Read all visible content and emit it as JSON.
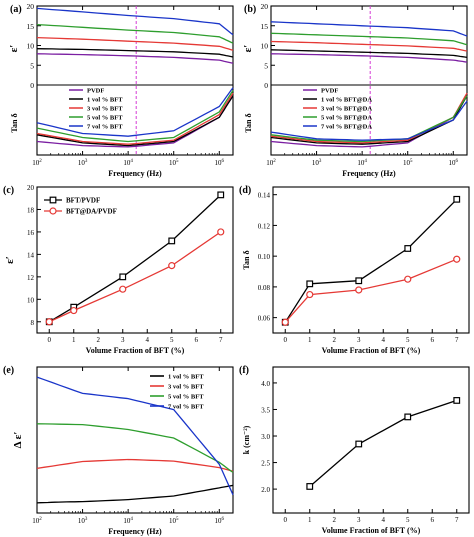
{
  "chart_data": [
    {
      "panel": "(a)",
      "type": "line",
      "xlabel": "Frequency (Hz)",
      "xscale": "log",
      "xlim": [
        100,
        2000000
      ],
      "x_tick_labels": [
        "10^2",
        "10^3",
        "10^4",
        "10^5",
        "10^6"
      ],
      "top": {
        "ylabel": "ε′",
        "ylim": [
          0,
          20
        ],
        "y_tick_labels": [
          "0",
          "5",
          "10",
          "15",
          "20"
        ],
        "series": [
          {
            "color": "#7b1fa2",
            "x": [
              100,
              1000,
              10000,
              100000,
              1000000,
              2000000
            ],
            "values": [
              7.9,
              7.7,
              7.4,
              7.0,
              6.3,
              5.5
            ]
          },
          {
            "color": "#000000",
            "x": [
              100,
              1000,
              10000,
              100000,
              1000000,
              2000000
            ],
            "values": [
              9.2,
              9.0,
              8.7,
              8.4,
              7.8,
              7.1
            ]
          },
          {
            "color": "#e53935",
            "x": [
              100,
              1000,
              10000,
              100000,
              1000000,
              2000000
            ],
            "values": [
              12.0,
              11.6,
              11.1,
              10.6,
              9.8,
              8.8
            ]
          },
          {
            "color": "#2e9e2e",
            "x": [
              100,
              1000,
              10000,
              100000,
              1000000,
              2000000
            ],
            "values": [
              15.3,
              14.6,
              13.9,
              13.3,
              12.2,
              10.6
            ]
          },
          {
            "color": "#1a35c9",
            "x": [
              100,
              1000,
              10000,
              100000,
              1000000,
              2000000
            ],
            "values": [
              19.4,
              18.5,
              17.6,
              16.8,
              15.5,
              12.7
            ]
          }
        ]
      },
      "bottom": {
        "ylabel": "Tan δ",
        "legend": [
          "PVDF",
          "1 vol % BFT",
          "3 vol % BFT",
          "5 vol % BFT",
          "7 vol % BFT"
        ],
        "series": [
          {
            "color": "#7b1fa2",
            "x": [
              100,
              1000,
              10000,
              100000,
              1000000,
              2000000
            ],
            "values": [
              0.05,
              0.035,
              0.03,
              0.045,
              0.14,
              0.22
            ]
          },
          {
            "color": "#000000",
            "x": [
              100,
              1000,
              10000,
              100000,
              1000000,
              2000000
            ],
            "values": [
              0.075,
              0.045,
              0.035,
              0.05,
              0.14,
              0.22
            ]
          },
          {
            "color": "#e53935",
            "x": [
              100,
              1000,
              10000,
              100000,
              1000000,
              2000000
            ],
            "values": [
              0.08,
              0.05,
              0.04,
              0.055,
              0.15,
              0.23
            ]
          },
          {
            "color": "#2e9e2e",
            "x": [
              100,
              1000,
              10000,
              100000,
              1000000,
              2000000
            ],
            "values": [
              0.1,
              0.065,
              0.05,
              0.065,
              0.16,
              0.24
            ]
          },
          {
            "color": "#1a35c9",
            "x": [
              100,
              1000,
              10000,
              100000,
              1000000,
              2000000
            ],
            "values": [
              0.12,
              0.08,
              0.07,
              0.09,
              0.18,
              0.25
            ]
          }
        ]
      },
      "marker_line": {
        "x": 15000,
        "color": "#d63bd6",
        "style": "dashed"
      }
    },
    {
      "panel": "(b)",
      "type": "line",
      "xlabel": "Frequency (Hz)",
      "xscale": "log",
      "xlim": [
        100,
        2000000
      ],
      "x_tick_labels": [
        "10^2",
        "10^3",
        "10^4",
        "10^5",
        "10^6"
      ],
      "top": {
        "ylabel": "ε′",
        "ylim": [
          0,
          20
        ],
        "y_tick_labels": [
          "0",
          "5",
          "10",
          "15",
          "20"
        ],
        "series": [
          {
            "color": "#7b1fa2",
            "x": [
              100,
              1000,
              10000,
              100000,
              1000000,
              2000000
            ],
            "values": [
              7.9,
              7.7,
              7.4,
              7.0,
              6.3,
              5.8
            ]
          },
          {
            "color": "#000000",
            "x": [
              100,
              1000,
              10000,
              100000,
              1000000,
              2000000
            ],
            "values": [
              8.9,
              8.6,
              8.3,
              8.0,
              7.5,
              7.0
            ]
          },
          {
            "color": "#e53935",
            "x": [
              100,
              1000,
              10000,
              100000,
              1000000,
              2000000
            ],
            "values": [
              11.0,
              10.7,
              10.3,
              9.9,
              9.3,
              8.6
            ]
          },
          {
            "color": "#2e9e2e",
            "x": [
              100,
              1000,
              10000,
              100000,
              1000000,
              2000000
            ],
            "values": [
              13.1,
              12.7,
              12.3,
              11.9,
              11.2,
              10.2
            ]
          },
          {
            "color": "#1a35c9",
            "x": [
              100,
              1000,
              10000,
              100000,
              1000000,
              2000000
            ],
            "values": [
              16.0,
              15.5,
              15.0,
              14.5,
              13.7,
              12.4
            ]
          }
        ]
      },
      "bottom": {
        "ylabel": "Tan δ",
        "legend": [
          "PVDF",
          "1 vol % BFT@DA",
          "3 vol % BFT@DA",
          "5 vol % BFT@DA",
          "7 vol % BFT@DA"
        ],
        "series": [
          {
            "color": "#7b1fa2",
            "x": [
              100,
              1000,
              10000,
              100000,
              1000000,
              2000000
            ],
            "values": [
              0.05,
              0.035,
              0.03,
              0.045,
              0.14,
              0.22
            ]
          },
          {
            "color": "#000000",
            "x": [
              100,
              1000,
              10000,
              100000,
              1000000,
              2000000
            ],
            "values": [
              0.065,
              0.045,
              0.04,
              0.05,
              0.13,
              0.22
            ]
          },
          {
            "color": "#e53935",
            "x": [
              100,
              1000,
              10000,
              100000,
              1000000,
              2000000
            ],
            "values": [
              0.07,
              0.05,
              0.045,
              0.055,
              0.14,
              0.23
            ]
          },
          {
            "color": "#2e9e2e",
            "x": [
              100,
              1000,
              10000,
              100000,
              1000000,
              2000000
            ],
            "values": [
              0.075,
              0.055,
              0.05,
              0.06,
              0.14,
              0.22
            ]
          },
          {
            "color": "#1a35c9",
            "x": [
              100,
              1000,
              10000,
              100000,
              1000000,
              2000000
            ],
            "values": [
              0.085,
              0.06,
              0.055,
              0.06,
              0.13,
              0.2
            ]
          }
        ]
      },
      "marker_line": {
        "x": 15000,
        "color": "#d63bd6",
        "style": "dashed"
      }
    },
    {
      "panel": "(c)",
      "type": "line",
      "xlabel": "Volume Fraction of BFT (%)",
      "ylabel": "ε′",
      "xlim": [
        -0.5,
        7.5
      ],
      "ylim": [
        7,
        20
      ],
      "x_ticks": [
        0,
        1,
        2,
        3,
        4,
        5,
        6,
        7
      ],
      "y_ticks": [
        8,
        10,
        12,
        14,
        16,
        18,
        20
      ],
      "legend_position": "top-left",
      "series": [
        {
          "name": "BFT/PVDF",
          "color": "#000000",
          "marker": "square",
          "x": [
            0,
            1,
            3,
            5,
            7
          ],
          "values": [
            8.0,
            9.3,
            12.0,
            15.2,
            19.3
          ]
        },
        {
          "name": "BFT@DA/PVDF",
          "color": "#e53935",
          "marker": "circle",
          "x": [
            0,
            1,
            3,
            5,
            7
          ],
          "values": [
            8.0,
            9.0,
            10.9,
            13.0,
            16.0
          ]
        }
      ]
    },
    {
      "panel": "(d)",
      "type": "line",
      "xlabel": "Volume Fraction of BFT (%)",
      "ylabel": "Tan δ",
      "xlim": [
        -0.5,
        7.5
      ],
      "ylim": [
        0.05,
        0.145
      ],
      "x_ticks": [
        0,
        1,
        2,
        3,
        4,
        5,
        6,
        7
      ],
      "y_ticks": [
        0.06,
        0.08,
        0.1,
        0.12,
        0.14
      ],
      "y_tick_labels": [
        "0.06",
        "0.08",
        "0.10",
        "0.12",
        "0.14"
      ],
      "series": [
        {
          "color": "#000000",
          "marker": "square",
          "x": [
            0,
            1,
            3,
            5,
            7
          ],
          "values": [
            0.057,
            0.082,
            0.084,
            0.105,
            0.137
          ]
        },
        {
          "color": "#e53935",
          "marker": "circle",
          "x": [
            0,
            1,
            3,
            5,
            7
          ],
          "values": [
            0.057,
            0.075,
            0.078,
            0.085,
            0.098
          ]
        }
      ]
    },
    {
      "panel": "(e)",
      "type": "line",
      "xlabel": "Frequency (Hz)",
      "ylabel": "Δ ε′",
      "xscale": "log",
      "xlim": [
        100,
        2000000
      ],
      "x_tick_labels": [
        "10^2",
        "10^3",
        "10^4",
        "10^5",
        "10^6"
      ],
      "ylim": [
        0,
        3.6
      ],
      "legend_position": "top-right",
      "series": [
        {
          "name": "1 vol % BFT",
          "color": "#000000",
          "x": [
            100,
            300,
            1000,
            10000,
            100000,
            1000000,
            2000000
          ],
          "values": [
            0.25,
            0.27,
            0.28,
            0.33,
            0.42,
            0.62,
            0.68
          ]
        },
        {
          "name": "3 vol % BFT",
          "color": "#e53935",
          "x": [
            100,
            1000,
            10000,
            100000,
            1000000,
            2000000
          ],
          "values": [
            1.1,
            1.27,
            1.32,
            1.28,
            1.12,
            1.03
          ]
        },
        {
          "name": "5 vol % BFT",
          "color": "#2e9e2e",
          "x": [
            100,
            1000,
            10000,
            100000,
            1000000,
            2000000
          ],
          "values": [
            2.2,
            2.18,
            2.06,
            1.85,
            1.25,
            1.0
          ]
        },
        {
          "name": "7 vol % BFT",
          "color": "#1a35c9",
          "x": [
            100,
            1000,
            10000,
            100000,
            1000000,
            2000000
          ],
          "values": [
            3.35,
            2.95,
            2.82,
            2.55,
            1.2,
            0.45
          ]
        }
      ]
    },
    {
      "panel": "(f)",
      "type": "line",
      "xlabel": "Volume Fraction of BFT (%)",
      "ylabel": "k (cm⁻²)",
      "xlim": [
        -0.5,
        7.5
      ],
      "ylim": [
        1.55,
        4.3
      ],
      "x_ticks": [
        0,
        1,
        2,
        3,
        4,
        5,
        6,
        7
      ],
      "y_ticks": [
        1.5,
        2.0,
        2.5,
        3.0,
        3.5,
        4.0
      ],
      "y_tick_labels": [
        "1.5",
        "2.0",
        "2.5",
        "3.0",
        "3.5",
        "4.0"
      ],
      "series": [
        {
          "color": "#000000",
          "marker": "square",
          "x": [
            1,
            3,
            5,
            7
          ],
          "values": [
            2.05,
            2.85,
            3.36,
            3.67
          ]
        }
      ]
    }
  ]
}
